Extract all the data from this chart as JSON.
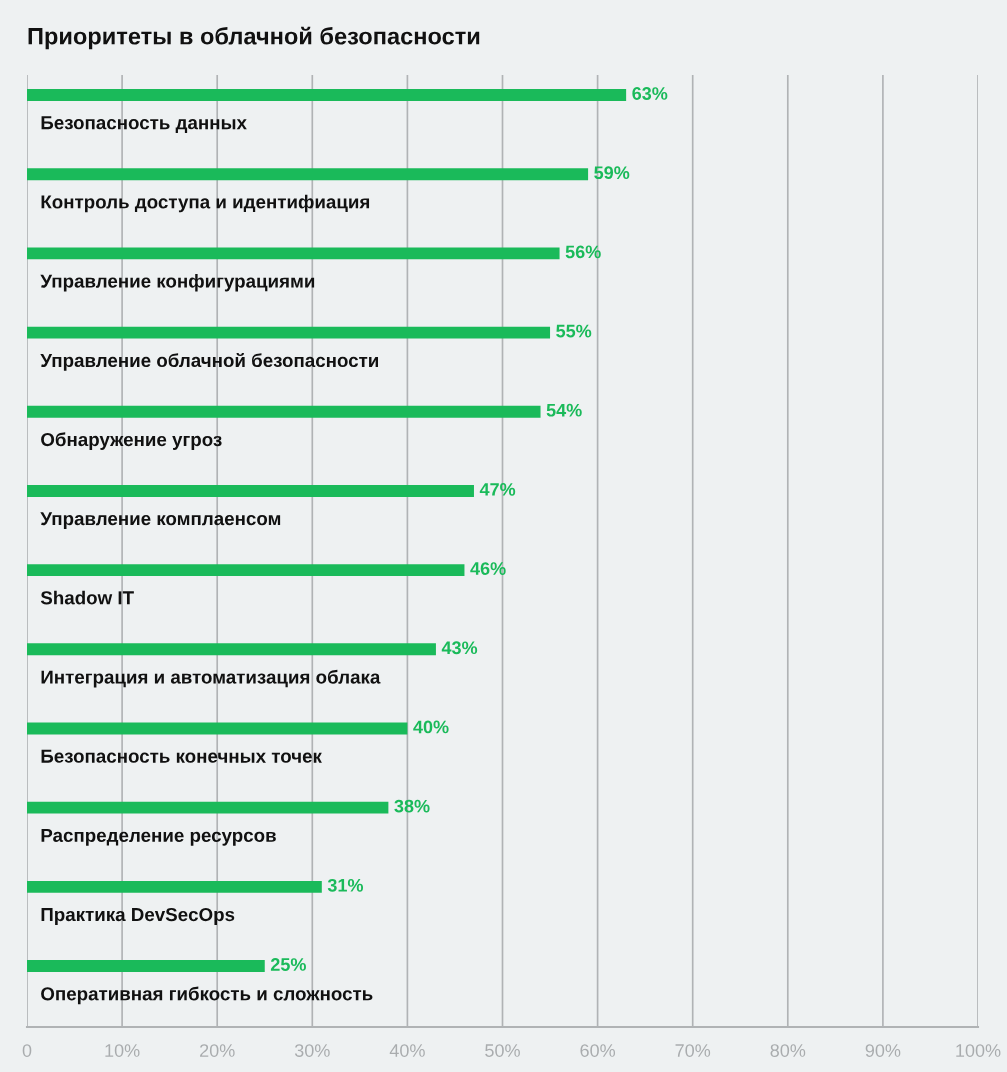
{
  "chart_data": {
    "type": "bar",
    "orientation": "horizontal",
    "title": "Приоритеты в облачной безопасности",
    "categories": [
      "Безопасность данных",
      "Контроль доступа и идентифиация",
      "Управление конфигурациями",
      "Управление облачной безопасности",
      "Обнаружение угроз",
      "Управление комплаенсом",
      "Shadow IT",
      "Интеграция и автоматизация облака",
      "Безопасность конечных точек",
      "Распределение ресурсов",
      "Практика DevSecOps",
      "Оперативная гибкость и сложность"
    ],
    "values": [
      63,
      59,
      56,
      55,
      54,
      47,
      46,
      43,
      40,
      38,
      31,
      25
    ],
    "color": "#1aba5a",
    "xlim": [
      0,
      100
    ],
    "xticks": [
      {
        "value": 0,
        "label": "0"
      },
      {
        "value": 10,
        "label": "10%"
      },
      {
        "value": 20,
        "label": "20%"
      },
      {
        "value": 30,
        "label": "30%"
      },
      {
        "value": 40,
        "label": "40%"
      },
      {
        "value": 50,
        "label": "50%"
      },
      {
        "value": 60,
        "label": "60%"
      },
      {
        "value": 70,
        "label": "70%"
      },
      {
        "value": 80,
        "label": "80%"
      },
      {
        "value": 90,
        "label": "90%"
      },
      {
        "value": 100,
        "label": "100%"
      }
    ],
    "value_labels": [
      "63%",
      "59%",
      "56%",
      "55%",
      "54%",
      "47%",
      "46%",
      "43%",
      "40%",
      "38%",
      "31%",
      "25%"
    ],
    "grid": "x",
    "legend": false
  }
}
